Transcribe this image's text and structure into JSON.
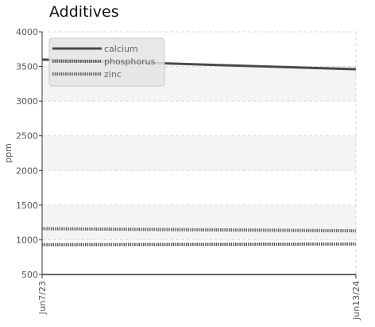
{
  "chart_data": {
    "type": "line",
    "title": "Additives",
    "xlabel": "",
    "ylabel": "ppm",
    "ylim": [
      500,
      4000
    ],
    "yticks": [
      500,
      1000,
      1500,
      2000,
      2500,
      3000,
      3500,
      4000
    ],
    "x": [
      "Jun7/23",
      "Jun13/24"
    ],
    "xticks": [
      "Jun7/23",
      "Jun13/24"
    ],
    "grid": true,
    "legend_position": "top-left",
    "series": [
      {
        "name": "calcium",
        "values": [
          3600,
          3460
        ],
        "color": "#4a4a4a",
        "style": "solid"
      },
      {
        "name": "phosphorus",
        "values": [
          930,
          940
        ],
        "color": "#555555",
        "style": "dotted"
      },
      {
        "name": "zinc",
        "values": [
          1160,
          1130
        ],
        "color": "#666666",
        "style": "dotted"
      }
    ]
  }
}
